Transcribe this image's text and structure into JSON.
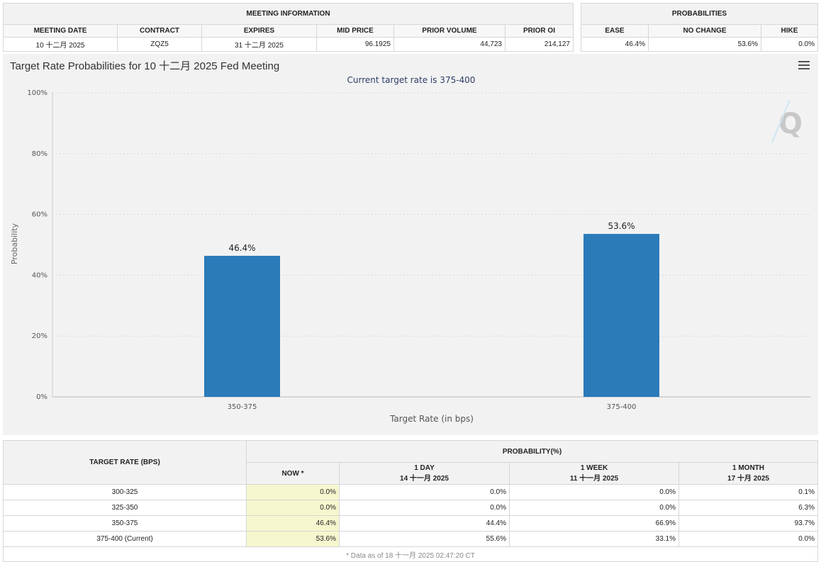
{
  "meeting_info": {
    "title": "MEETING INFORMATION",
    "columns": [
      "MEETING DATE",
      "CONTRACT",
      "EXPIRES",
      "MID PRICE",
      "PRIOR VOLUME",
      "PRIOR OI"
    ],
    "row": [
      "10 十二月 2025",
      "ZQZ5",
      "31 十二月 2025",
      "96.1925",
      "44,723",
      "214,127"
    ]
  },
  "probabilities": {
    "title": "PROBABILITIES",
    "columns": [
      "EASE",
      "NO CHANGE",
      "HIKE"
    ],
    "row": [
      "46.4%",
      "53.6%",
      "0.0%"
    ]
  },
  "chart_data": {
    "type": "bar",
    "title": "Target Rate Probabilities for 10 十二月 2025 Fed Meeting",
    "subtitle": "Current target rate is 375-400",
    "categories": [
      "350-375",
      "375-400"
    ],
    "values": [
      46.4,
      53.6
    ],
    "data_labels": [
      "46.4%",
      "53.6%"
    ],
    "xlabel": "Target Rate (in bps)",
    "ylabel": "Probability",
    "ylim": [
      0,
      100
    ],
    "yticks": [
      0,
      20,
      40,
      60,
      80,
      100
    ],
    "ytick_labels": [
      "0%",
      "20%",
      "40%",
      "60%",
      "80%",
      "100%"
    ],
    "grid": true,
    "bar_color": "#2b7bb9"
  },
  "watermark": "Q",
  "bottom_table": {
    "header_left": "TARGET RATE (BPS)",
    "header_right": "PROBABILITY(%)",
    "sub_columns": [
      {
        "label": "NOW *",
        "date": ""
      },
      {
        "label": "1 DAY",
        "date": "14 十一月 2025"
      },
      {
        "label": "1 WEEK",
        "date": "11 十一月 2025"
      },
      {
        "label": "1 MONTH",
        "date": "17 十月 2025"
      }
    ],
    "rows": [
      {
        "rate": "300-325",
        "values": [
          "0.0%",
          "0.0%",
          "0.0%",
          "0.1%"
        ]
      },
      {
        "rate": "325-350",
        "values": [
          "0.0%",
          "0.0%",
          "0.0%",
          "6.3%"
        ]
      },
      {
        "rate": "350-375",
        "values": [
          "46.4%",
          "44.4%",
          "66.9%",
          "93.7%"
        ]
      },
      {
        "rate": "375-400 (Current)",
        "values": [
          "53.6%",
          "55.6%",
          "33.1%",
          "0.0%"
        ]
      }
    ],
    "footnote": "* Data as of 18 十一月 2025 02:47:20 CT"
  }
}
